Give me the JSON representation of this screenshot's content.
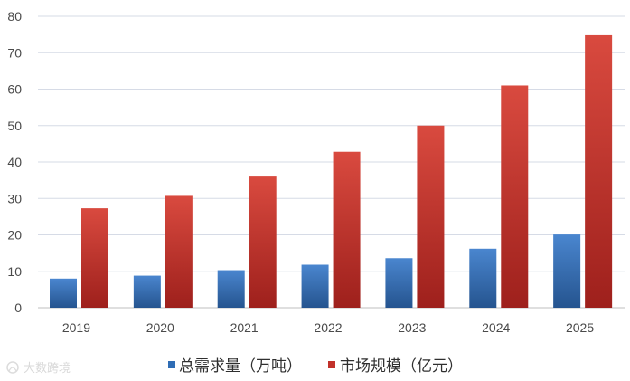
{
  "chart_data": {
    "type": "bar",
    "title": "",
    "xlabel": "",
    "ylabel": "",
    "categories": [
      "2019",
      "2020",
      "2021",
      "2022",
      "2023",
      "2024",
      "2025"
    ],
    "series": [
      {
        "name": "总需求量（万吨）",
        "values": [
          8,
          8.8,
          10.3,
          11.8,
          13.6,
          16.2,
          20.1
        ],
        "color": "#2f6db5"
      },
      {
        "name": "市场规模（亿元）",
        "values": [
          27.3,
          30.7,
          36,
          42.8,
          50,
          61,
          74.8
        ],
        "color": "#c1312a"
      }
    ],
    "ylim": [
      0,
      80
    ],
    "yticks": [
      "0",
      "10",
      "20",
      "30",
      "40",
      "50",
      "60",
      "70",
      "80"
    ],
    "grid": true,
    "legend_position": "bottom"
  },
  "watermark": {
    "text": "大数跨境"
  }
}
